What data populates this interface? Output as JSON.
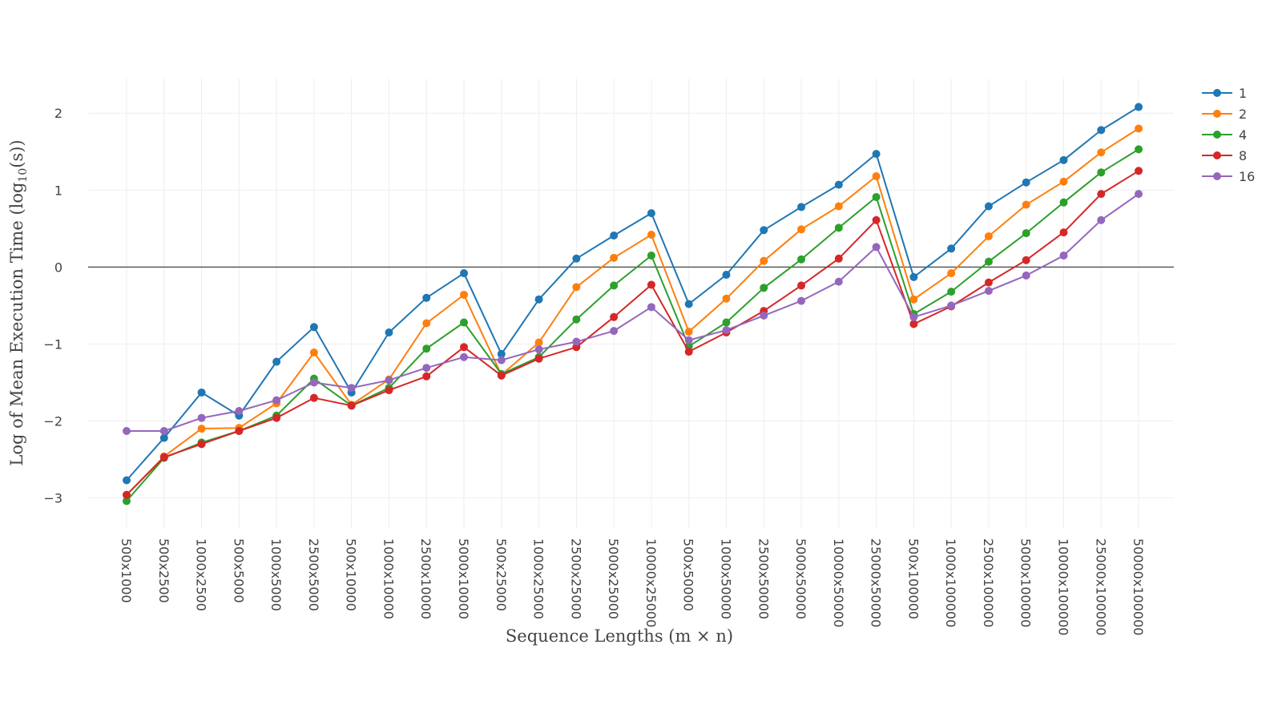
{
  "chart_data": {
    "type": "line",
    "title": "",
    "xlabel": "Sequence Lengths (m × n)",
    "ylabel": "Log of Mean Execution Time (log",
    "ylabel_sub": "10",
    "ylabel_tail": "(s))",
    "ylim": [
      -3.4,
      2.45
    ],
    "yticks": [
      -3,
      -2,
      -1,
      0,
      1,
      2
    ],
    "ytick_labels": [
      "−3",
      "−2",
      "−1",
      "0",
      "1",
      "2"
    ],
    "grid": true,
    "zero_line": true,
    "legend_position": "top-right",
    "categories": [
      "500x1000",
      "500x2500",
      "1000x2500",
      "500x5000",
      "1000x5000",
      "2500x5000",
      "500x10000",
      "1000x10000",
      "2500x10000",
      "5000x10000",
      "500x25000",
      "1000x25000",
      "2500x25000",
      "5000x25000",
      "10000x25000",
      "500x50000",
      "1000x50000",
      "2500x50000",
      "5000x50000",
      "10000x50000",
      "25000x50000",
      "500x100000",
      "1000x100000",
      "2500x100000",
      "5000x100000",
      "10000x100000",
      "25000x100000",
      "50000x100000"
    ],
    "series": [
      {
        "name": "1",
        "color": "#1f77b4",
        "values": [
          -2.77,
          -2.22,
          -1.63,
          -1.93,
          -1.23,
          -0.78,
          -1.63,
          -0.85,
          -0.4,
          -0.08,
          -1.13,
          -0.42,
          0.11,
          0.41,
          0.7,
          -0.48,
          -0.1,
          0.48,
          0.78,
          1.07,
          1.47,
          -0.13,
          0.24,
          0.79,
          1.1,
          1.39,
          1.78,
          2.08
        ]
      },
      {
        "name": "2",
        "color": "#ff7f0e",
        "values": [
          -2.96,
          -2.46,
          -2.1,
          -2.09,
          -1.77,
          -1.11,
          -1.79,
          -1.46,
          -0.73,
          -0.36,
          -1.4,
          -0.98,
          -0.26,
          0.12,
          0.42,
          -0.84,
          -0.41,
          0.08,
          0.49,
          0.79,
          1.18,
          -0.42,
          -0.08,
          0.4,
          0.81,
          1.11,
          1.49,
          1.8
        ]
      },
      {
        "name": "4",
        "color": "#2ca02c",
        "values": [
          -3.04,
          -2.48,
          -2.28,
          -2.13,
          -1.93,
          -1.45,
          -1.8,
          -1.57,
          -1.06,
          -0.72,
          -1.39,
          -1.17,
          -0.68,
          -0.24,
          0.15,
          -1.03,
          -0.72,
          -0.27,
          0.1,
          0.51,
          0.91,
          -0.61,
          -0.32,
          0.07,
          0.44,
          0.84,
          1.23,
          1.53
        ]
      },
      {
        "name": "8",
        "color": "#d62728",
        "values": [
          -2.96,
          -2.47,
          -2.3,
          -2.13,
          -1.96,
          -1.7,
          -1.8,
          -1.6,
          -1.42,
          -1.04,
          -1.41,
          -1.19,
          -1.04,
          -0.65,
          -0.23,
          -1.1,
          -0.85,
          -0.57,
          -0.24,
          0.11,
          0.61,
          -0.74,
          -0.51,
          -0.2,
          0.09,
          0.45,
          0.95,
          1.25
        ]
      },
      {
        "name": "16",
        "color": "#9467bd",
        "values": [
          -2.13,
          -2.13,
          -1.96,
          -1.87,
          -1.73,
          -1.5,
          -1.57,
          -1.47,
          -1.31,
          -1.17,
          -1.21,
          -1.07,
          -0.97,
          -0.83,
          -0.52,
          -0.95,
          -0.82,
          -0.63,
          -0.44,
          -0.19,
          0.26,
          -0.65,
          -0.5,
          -0.31,
          -0.11,
          0.15,
          0.61,
          0.95
        ]
      }
    ]
  }
}
